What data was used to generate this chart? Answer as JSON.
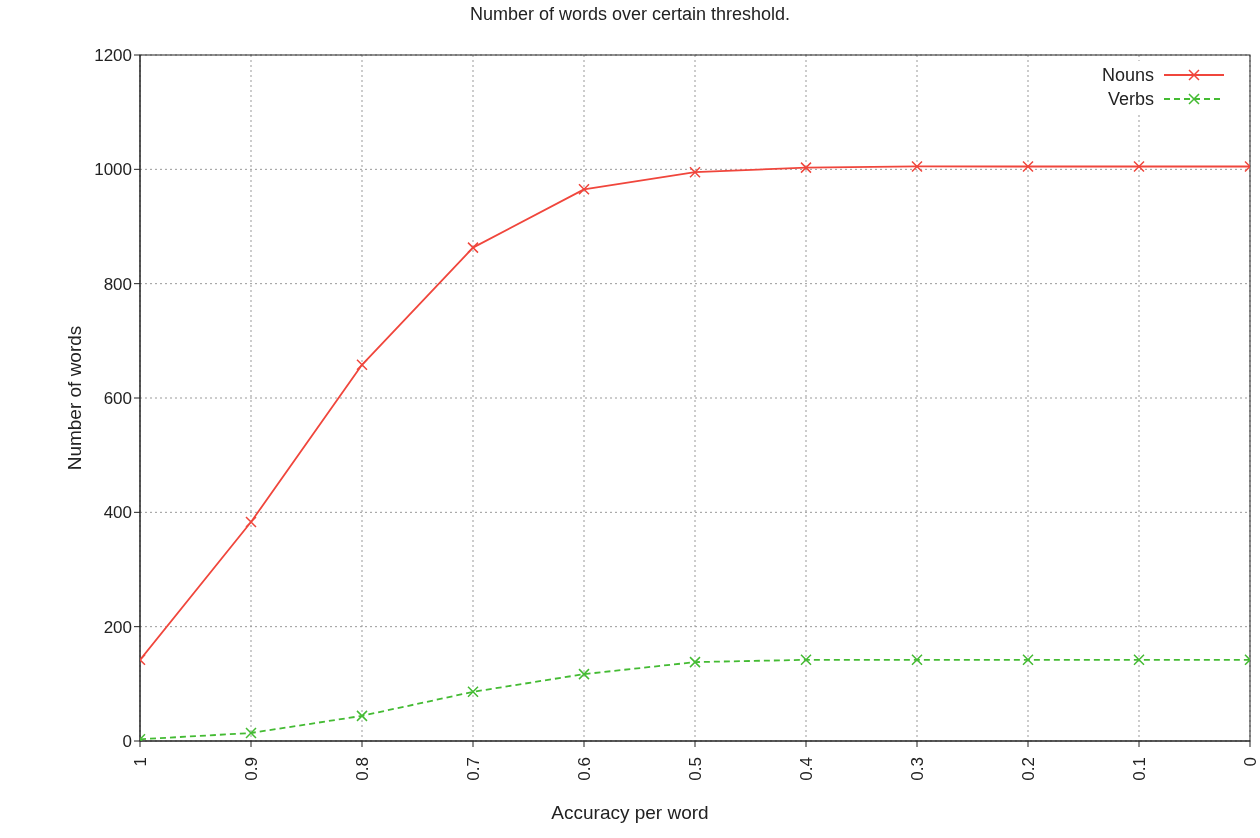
{
  "chart_data": {
    "type": "line",
    "title": "Number of words over certain threshold.",
    "xlabel": "Accuracy per word",
    "ylabel": "Number of words",
    "x": [
      1,
      0.9,
      0.8,
      0.7,
      0.6,
      0.5,
      0.4,
      0.3,
      0.2,
      0.1,
      0
    ],
    "series": [
      {
        "name": "Nouns",
        "color": "#f0463c",
        "line_style": "solid",
        "marker": "cross",
        "values": [
          142,
          383,
          658,
          863,
          965,
          995,
          1003,
          1005,
          1005,
          1005,
          1005
        ]
      },
      {
        "name": "Verbs",
        "color": "#44bb33",
        "line_style": "dashed",
        "marker": "cross",
        "values": [
          3,
          14,
          44,
          86,
          117,
          138,
          142,
          142,
          142,
          142,
          142
        ]
      }
    ],
    "xlim": [
      1,
      0
    ],
    "xticks": [
      1,
      0.9,
      0.8,
      0.7,
      0.6,
      0.5,
      0.4,
      0.3,
      0.2,
      0.1,
      0
    ],
    "ylim": [
      0,
      1200
    ],
    "yticks": [
      0,
      200,
      400,
      600,
      800,
      1000,
      1200
    ],
    "grid": true,
    "legend": "top right"
  }
}
